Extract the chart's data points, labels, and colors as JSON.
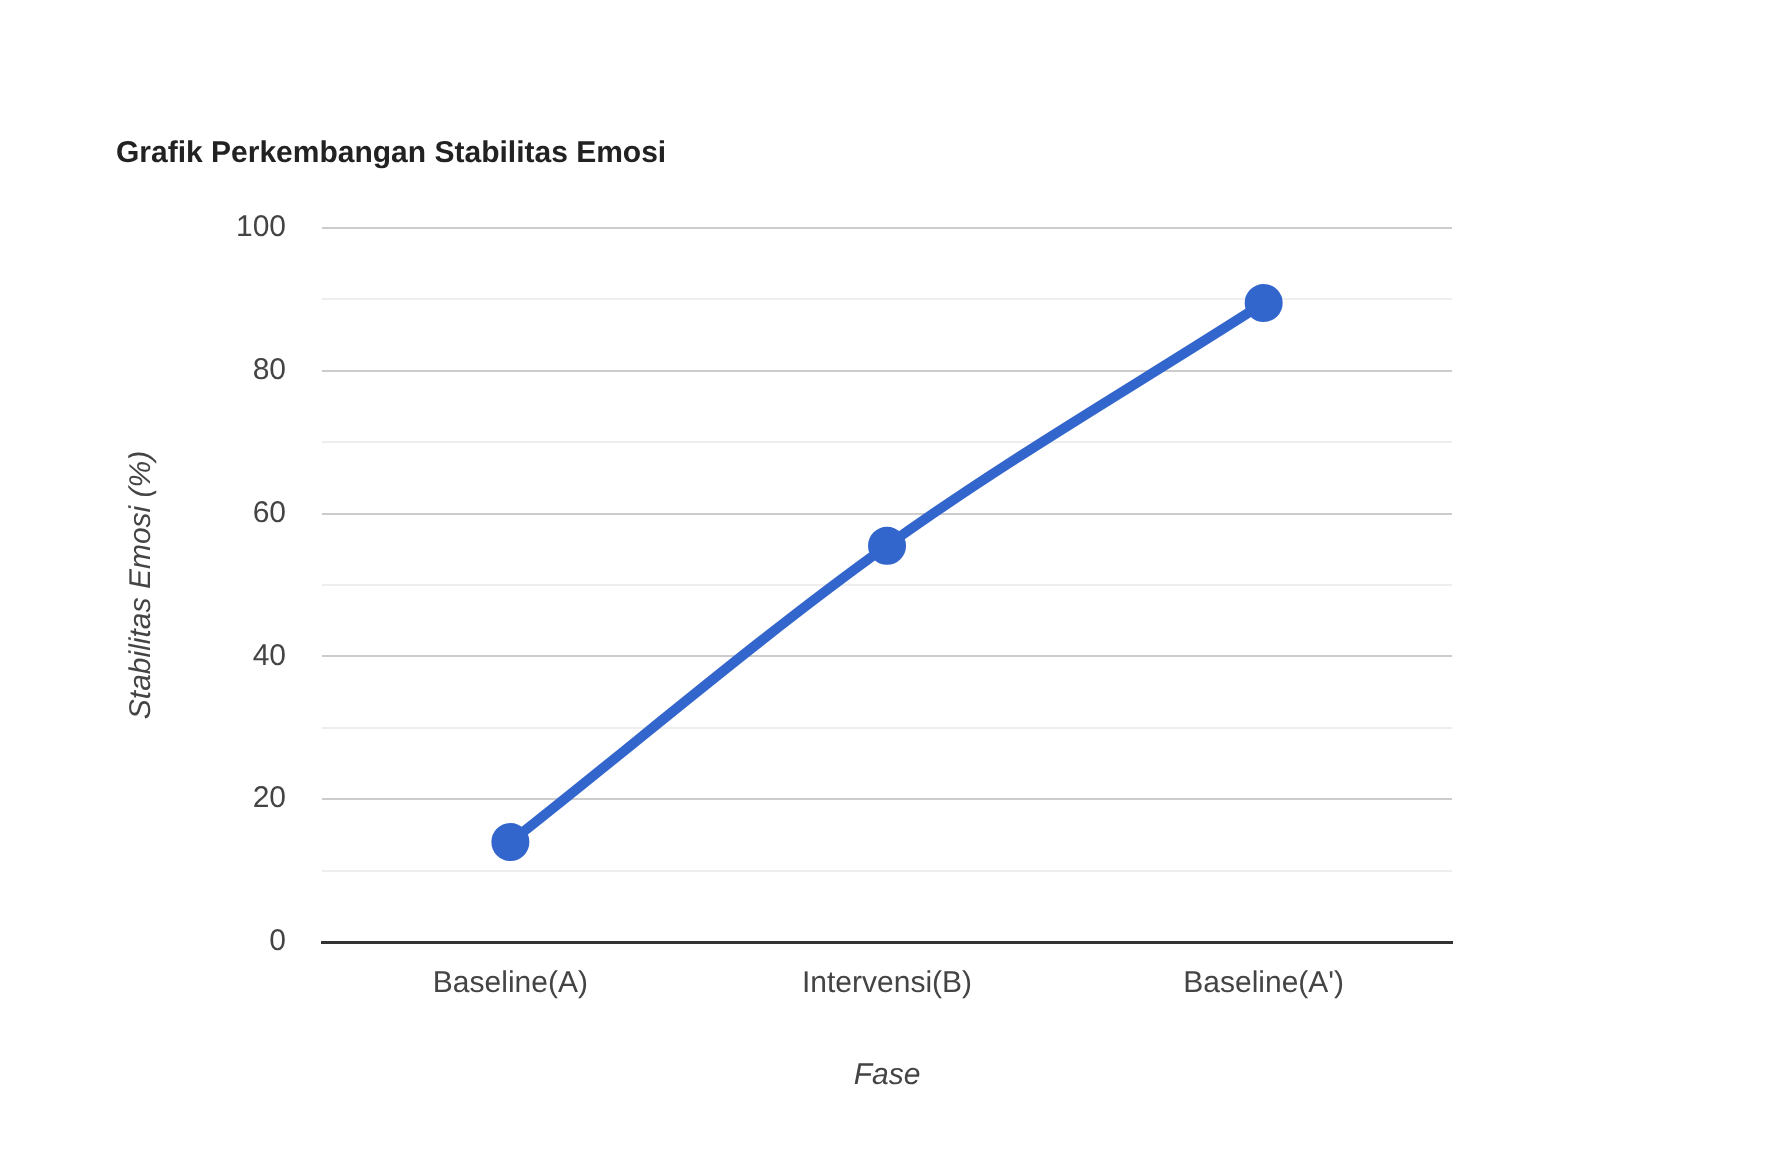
{
  "chart_data": {
    "type": "line",
    "title": "Grafik Perkembangan Stabilitas Emosi",
    "xlabel": "Fase",
    "ylabel": "Stabilitas Emosi (%)",
    "categories": [
      "Baseline(A)",
      "Intervensi(B)",
      "Baseline(A')"
    ],
    "series": [
      {
        "color": "#3366cc",
        "values": [
          14,
          55.5,
          89.5
        ]
      }
    ],
    "ylim": [
      0,
      100
    ],
    "yticks": [
      0,
      {
        "value": 10,
        "label": null
      },
      20,
      {
        "value": 30,
        "label": null
      },
      40,
      {
        "value": 50,
        "label": null
      },
      60,
      {
        "value": 70,
        "label": null
      },
      80,
      {
        "value": 90,
        "label": null
      },
      100
    ],
    "grid": "y",
    "legend": false,
    "marker": "circle",
    "line_style": "solid"
  }
}
